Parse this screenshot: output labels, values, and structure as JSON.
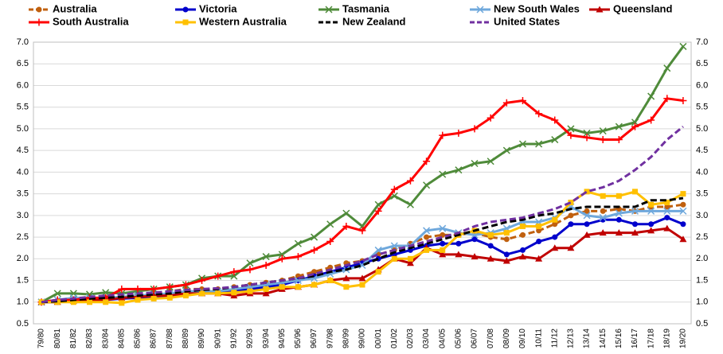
{
  "chart_data": {
    "type": "line",
    "categories": [
      "79/80",
      "80/81",
      "81/82",
      "82/83",
      "83/84",
      "84/85",
      "85/86",
      "86/87",
      "87/88",
      "88/89",
      "89/90",
      "90/91",
      "91/92",
      "92/93",
      "93/94",
      "94/95",
      "95/96",
      "96/97",
      "97/98",
      "98/99",
      "99/00",
      "00/01",
      "01/02",
      "02/03",
      "03/04",
      "04/05",
      "05/06",
      "06/07",
      "07/08",
      "08/09",
      "09/10",
      "10/11",
      "11/12",
      "12/13",
      "13/14",
      "14/15",
      "15/16",
      "16/17",
      "17/18",
      "18/19",
      "19/20"
    ],
    "ylim": [
      0.5,
      7.0
    ],
    "yticks": [
      {
        "value": 0.5,
        "label": "0.5"
      },
      {
        "value": 1,
        "label": "1.0"
      },
      {
        "value": 1.5,
        "label": "1.5"
      },
      {
        "value": 2,
        "label": "2.0"
      },
      {
        "value": 2.5,
        "label": "2.5"
      },
      {
        "value": 3,
        "label": "3.0"
      },
      {
        "value": 3.5,
        "label": "3.5"
      },
      {
        "value": 4,
        "label": "4.0"
      },
      {
        "value": 4.5,
        "label": "4.5"
      },
      {
        "value": 5,
        "label": "5.0"
      },
      {
        "value": 5.5,
        "label": "5.5"
      },
      {
        "value": 6,
        "label": "6.0"
      },
      {
        "value": 6.5,
        "label": "6.5"
      },
      {
        "value": 7,
        "label": "7.0"
      }
    ],
    "y2lim": [
      0.5,
      7.0
    ],
    "y2ticks": [
      {
        "value": 0.5,
        "label": "0.5"
      },
      {
        "value": 1,
        "label": "1.0"
      },
      {
        "value": 1.5,
        "label": "1.5"
      },
      {
        "value": 2,
        "label": "2.0"
      },
      {
        "value": 2.5,
        "label": "2.5"
      },
      {
        "value": 3,
        "label": "3.0"
      },
      {
        "value": 3.5,
        "label": "3.5"
      },
      {
        "value": 4,
        "label": "4.0"
      },
      {
        "value": 4.5,
        "label": "4.5"
      },
      {
        "value": 5,
        "label": "5.0"
      },
      {
        "value": 5.5,
        "label": "5.5"
      },
      {
        "value": 6,
        "label": "6.0"
      },
      {
        "value": 6.5,
        "label": "6.5"
      },
      {
        "value": 7,
        "label": "7.0"
      }
    ],
    "grid": true,
    "series": [
      {
        "name": "Australia",
        "color": "#c0600f",
        "marker": "circle",
        "dashed": true,
        "values": [
          1.0,
          1.02,
          1.05,
          1.08,
          1.1,
          1.12,
          1.15,
          1.2,
          1.25,
          1.3,
          1.3,
          1.3,
          1.35,
          1.4,
          1.45,
          1.5,
          1.6,
          1.7,
          1.8,
          1.9,
          1.95,
          2.1,
          2.2,
          2.35,
          2.5,
          2.55,
          2.55,
          2.6,
          2.5,
          2.45,
          2.55,
          2.65,
          2.8,
          3.0,
          3.1,
          3.1,
          3.15,
          3.1,
          3.2,
          3.2,
          3.25
        ]
      },
      {
        "name": "Victoria",
        "color": "#0000cc",
        "marker": "circle",
        "dashed": false,
        "values": [
          1.0,
          1.0,
          1.03,
          1.05,
          1.05,
          1.08,
          1.1,
          1.12,
          1.15,
          1.2,
          1.2,
          1.22,
          1.25,
          1.3,
          1.35,
          1.4,
          1.5,
          1.6,
          1.7,
          1.8,
          1.9,
          2.0,
          2.1,
          2.2,
          2.3,
          2.35,
          2.35,
          2.45,
          2.3,
          2.1,
          2.2,
          2.4,
          2.5,
          2.8,
          2.8,
          2.9,
          2.9,
          2.8,
          2.8,
          2.95,
          2.8
        ]
      },
      {
        "name": "Tasmania",
        "color": "#4f8b3a",
        "marker": "x",
        "dashed": false,
        "values": [
          1.0,
          1.2,
          1.2,
          1.18,
          1.22,
          1.2,
          1.25,
          1.3,
          1.35,
          1.4,
          1.55,
          1.6,
          1.6,
          1.9,
          2.05,
          2.1,
          2.35,
          2.5,
          2.8,
          3.05,
          2.75,
          3.25,
          3.45,
          3.25,
          3.7,
          3.95,
          4.05,
          4.2,
          4.25,
          4.5,
          4.65,
          4.65,
          4.75,
          5.0,
          4.9,
          4.95,
          5.05,
          5.15,
          5.75,
          6.4,
          6.9
        ]
      },
      {
        "name": "New South Wales",
        "color": "#6fa8dc",
        "marker": "x",
        "dashed": false,
        "values": [
          1.0,
          1.05,
          1.1,
          1.1,
          1.1,
          1.12,
          1.15,
          1.18,
          1.2,
          1.25,
          1.25,
          1.25,
          1.3,
          1.35,
          1.4,
          1.45,
          1.5,
          1.55,
          1.65,
          1.75,
          1.85,
          2.2,
          2.3,
          2.3,
          2.65,
          2.7,
          2.6,
          2.55,
          2.6,
          2.7,
          2.85,
          2.85,
          2.95,
          3.2,
          3.0,
          2.95,
          3.05,
          3.1,
          3.1,
          3.1,
          3.1
        ]
      },
      {
        "name": "Queensland",
        "color": "#c00000",
        "marker": "triangle",
        "dashed": false,
        "values": [
          1.0,
          1.0,
          1.03,
          1.05,
          1.05,
          1.1,
          1.12,
          1.15,
          1.15,
          1.2,
          1.2,
          1.2,
          1.15,
          1.2,
          1.2,
          1.3,
          1.35,
          1.4,
          1.5,
          1.55,
          1.55,
          1.75,
          2.0,
          1.9,
          2.25,
          2.1,
          2.1,
          2.05,
          2.0,
          1.95,
          2.05,
          2.0,
          2.25,
          2.25,
          2.55,
          2.6,
          2.6,
          2.6,
          2.65,
          2.7,
          2.45
        ]
      },
      {
        "name": "South Australia",
        "color": "#ff0000",
        "marker": "plus",
        "dashed": false,
        "values": [
          1.0,
          1.05,
          1.05,
          1.1,
          1.1,
          1.3,
          1.3,
          1.3,
          1.35,
          1.4,
          1.5,
          1.6,
          1.7,
          1.75,
          1.85,
          2.0,
          2.05,
          2.2,
          2.4,
          2.75,
          2.65,
          3.1,
          3.6,
          3.8,
          4.25,
          4.85,
          4.9,
          5.0,
          5.25,
          5.6,
          5.65,
          5.35,
          5.2,
          4.85,
          4.8,
          4.75,
          4.75,
          5.05,
          5.2,
          5.7,
          5.65
        ]
      },
      {
        "name": "Western Australia",
        "color": "#ffc000",
        "marker": "square",
        "dashed": false,
        "values": [
          1.0,
          1.0,
          1.0,
          1.0,
          1.0,
          0.98,
          1.05,
          1.08,
          1.1,
          1.15,
          1.2,
          1.2,
          1.22,
          1.25,
          1.3,
          1.35,
          1.35,
          1.4,
          1.5,
          1.35,
          1.4,
          1.7,
          2.0,
          2.0,
          2.2,
          2.2,
          2.55,
          2.65,
          2.55,
          2.6,
          2.75,
          2.75,
          2.9,
          3.3,
          3.55,
          3.45,
          3.45,
          3.55,
          3.25,
          3.3,
          3.5
        ]
      },
      {
        "name": "New Zealand",
        "color": "#000000",
        "marker": "none",
        "dashed": true,
        "values": [
          1.0,
          1.02,
          1.05,
          1.08,
          1.1,
          1.12,
          1.15,
          1.18,
          1.2,
          1.25,
          1.28,
          1.3,
          1.35,
          1.4,
          1.45,
          1.5,
          1.55,
          1.6,
          1.7,
          1.75,
          1.85,
          2.0,
          2.15,
          2.25,
          2.35,
          2.45,
          2.55,
          2.65,
          2.75,
          2.85,
          2.9,
          3.0,
          3.05,
          3.15,
          3.2,
          3.2,
          3.2,
          3.2,
          3.35,
          3.35,
          3.4
        ]
      },
      {
        "name": "United States",
        "color": "#7030a0",
        "marker": "none",
        "dashed": true,
        "values": [
          1.0,
          1.05,
          1.08,
          1.12,
          1.15,
          1.18,
          1.2,
          1.22,
          1.25,
          1.28,
          1.3,
          1.32,
          1.35,
          1.4,
          1.45,
          1.5,
          1.55,
          1.65,
          1.75,
          1.85,
          1.95,
          2.1,
          2.2,
          2.3,
          2.4,
          2.5,
          2.6,
          2.75,
          2.85,
          2.9,
          2.95,
          3.05,
          3.15,
          3.3,
          3.55,
          3.65,
          3.8,
          4.05,
          4.35,
          4.75,
          5.05
        ]
      }
    ]
  }
}
